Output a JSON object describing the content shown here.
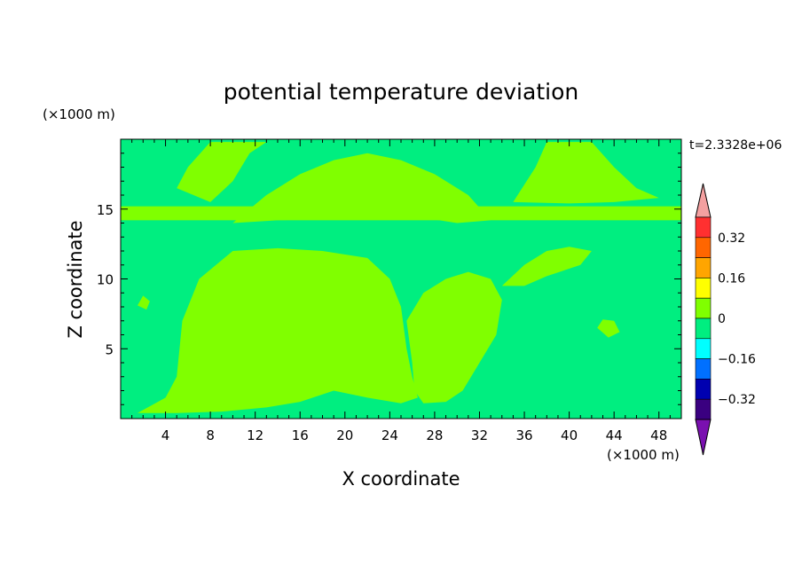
{
  "chart_data": {
    "type": "heatmap",
    "title": "potential temperature deviation",
    "xlabel": "X coordinate",
    "ylabel": "Z coordinate",
    "x_unit": "(×1000 m)",
    "y_unit": "(×1000 m)",
    "time_label": "t=2.3328e+06",
    "xlim": [
      0,
      50
    ],
    "ylim": [
      0,
      20
    ],
    "x_ticks": [
      4,
      8,
      12,
      16,
      20,
      24,
      28,
      32,
      36,
      40,
      44,
      48
    ],
    "y_ticks": [
      5,
      10,
      15
    ],
    "background_level": 0,
    "colorbar": {
      "levels": [
        {
          "lower": 0.4,
          "upper": null,
          "color": "#f4a0a0"
        },
        {
          "lower": 0.32,
          "upper": 0.4,
          "color": "#ff3030"
        },
        {
          "lower": 0.24,
          "upper": 0.32,
          "color": "#ff6600"
        },
        {
          "lower": 0.16,
          "upper": 0.24,
          "color": "#ffa500"
        },
        {
          "lower": 0.08,
          "upper": 0.16,
          "color": "#ffff00"
        },
        {
          "lower": 0.0,
          "upper": 0.08,
          "color": "#80ff00"
        },
        {
          "lower": -0.08,
          "upper": 0.0,
          "color": "#00ee80"
        },
        {
          "lower": -0.16,
          "upper": -0.08,
          "color": "#00ffff"
        },
        {
          "lower": -0.24,
          "upper": -0.16,
          "color": "#0070ff"
        },
        {
          "lower": -0.32,
          "upper": -0.24,
          "color": "#0000b0"
        },
        {
          "lower": -0.4,
          "upper": -0.32,
          "color": "#3a0080"
        },
        {
          "lower": null,
          "upper": -0.4,
          "color": "#7a10b0"
        }
      ],
      "tick_labels": [
        "0.32",
        "0.16",
        "0",
        "−0.16",
        "−0.32"
      ],
      "tick_values": [
        0.32,
        0.16,
        0,
        -0.16,
        -0.32
      ]
    },
    "regions": [
      {
        "value": 0.04,
        "points": [
          [
            1.5,
            0.4
          ],
          [
            4,
            1.5
          ],
          [
            5,
            3
          ],
          [
            5.5,
            7
          ],
          [
            7,
            10
          ],
          [
            10,
            12
          ],
          [
            14,
            12.2
          ],
          [
            18,
            12
          ],
          [
            22,
            11.5
          ],
          [
            24,
            10
          ],
          [
            25,
            8
          ],
          [
            25.5,
            5
          ],
          [
            26,
            3
          ],
          [
            26.5,
            1.5
          ],
          [
            25,
            1.1
          ],
          [
            22,
            1.5
          ],
          [
            19,
            2
          ],
          [
            16,
            1.2
          ],
          [
            13,
            0.8
          ],
          [
            9,
            0.5
          ],
          [
            5,
            0.4
          ]
        ]
      },
      {
        "value": 0.04,
        "points": [
          [
            25.5,
            7
          ],
          [
            27,
            9
          ],
          [
            29,
            10
          ],
          [
            31,
            10.5
          ],
          [
            33,
            10
          ],
          [
            34,
            8.5
          ],
          [
            33.5,
            6
          ],
          [
            32,
            4
          ],
          [
            30.5,
            2
          ],
          [
            29,
            1.2
          ],
          [
            27,
            1.1
          ],
          [
            26.2,
            2
          ],
          [
            26,
            4
          ]
        ]
      },
      {
        "value": 0.04,
        "points": [
          [
            34,
            9.5
          ],
          [
            36,
            11
          ],
          [
            38,
            12
          ],
          [
            40,
            12.3
          ],
          [
            42,
            12
          ],
          [
            41,
            11
          ],
          [
            38,
            10.2
          ],
          [
            36,
            9.5
          ]
        ]
      },
      {
        "value": 0.04,
        "points": [
          [
            10,
            14
          ],
          [
            13,
            16
          ],
          [
            16,
            17.5
          ],
          [
            19,
            18.5
          ],
          [
            22,
            19
          ],
          [
            25,
            18.5
          ],
          [
            28,
            17.5
          ],
          [
            31,
            16
          ],
          [
            33,
            14.2
          ],
          [
            30,
            14
          ],
          [
            26,
            14.5
          ],
          [
            22,
            14.5
          ],
          [
            18,
            14.3
          ],
          [
            14,
            14.2
          ]
        ]
      },
      {
        "value": 0.04,
        "points": [
          [
            0,
            14.2
          ],
          [
            50,
            14.2
          ],
          [
            50,
            15.2
          ],
          [
            0,
            15.2
          ]
        ]
      },
      {
        "value": 0.04,
        "points": [
          [
            35,
            15.5
          ],
          [
            37,
            18
          ],
          [
            38,
            19.8
          ],
          [
            42,
            19.8
          ],
          [
            44,
            18
          ],
          [
            46,
            16.5
          ],
          [
            48,
            15.8
          ],
          [
            44,
            15.5
          ],
          [
            40,
            15.4
          ]
        ]
      },
      {
        "value": 0.04,
        "points": [
          [
            8,
            15.5
          ],
          [
            10,
            17
          ],
          [
            11.5,
            19
          ],
          [
            13,
            19.8
          ],
          [
            8,
            19.8
          ],
          [
            6,
            18
          ],
          [
            5,
            16.5
          ]
        ]
      },
      {
        "value": 0.04,
        "points": [
          [
            42.5,
            6.5
          ],
          [
            43.5,
            5.8
          ],
          [
            44.5,
            6.2
          ],
          [
            44,
            7
          ],
          [
            43,
            7.1
          ]
        ]
      },
      {
        "value": 0.04,
        "points": [
          [
            1.5,
            8.1
          ],
          [
            2.3,
            7.8
          ],
          [
            2.6,
            8.4
          ],
          [
            2,
            8.8
          ]
        ]
      }
    ]
  }
}
